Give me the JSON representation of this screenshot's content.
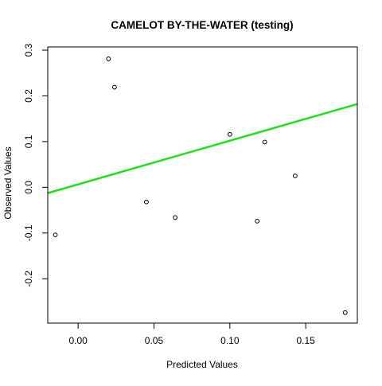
{
  "chart_data": {
    "type": "scatter",
    "title": "CAMELOT BY-THE-WATER (testing)",
    "xlabel": "Predicted Values",
    "ylabel": "Observed Values",
    "xlim": [
      -0.02,
      0.184
    ],
    "ylim": [
      -0.297,
      0.307
    ],
    "x_ticks": [
      0.0,
      0.05,
      0.1,
      0.15
    ],
    "x_tick_labels": [
      "0.00",
      "0.05",
      "0.10",
      "0.15"
    ],
    "y_ticks": [
      -0.2,
      -0.1,
      0.0,
      0.1,
      0.2,
      0.3
    ],
    "y_tick_labels": [
      "-0.2",
      "-0.1",
      "0.0",
      "0.1",
      "0.2",
      "0.3"
    ],
    "grid": false,
    "points": [
      {
        "x": -0.015,
        "y": -0.104
      },
      {
        "x": 0.02,
        "y": 0.281
      },
      {
        "x": 0.024,
        "y": 0.219
      },
      {
        "x": 0.045,
        "y": -0.032
      },
      {
        "x": 0.064,
        "y": -0.066
      },
      {
        "x": 0.1,
        "y": 0.116
      },
      {
        "x": 0.118,
        "y": -0.074
      },
      {
        "x": 0.123,
        "y": 0.099
      },
      {
        "x": 0.143,
        "y": 0.025
      },
      {
        "x": 0.176,
        "y": -0.274
      }
    ],
    "fit_line": {
      "color": "#22dd22",
      "intercept": 0.0065,
      "slope": 0.955
    },
    "point_color": "#000000"
  }
}
